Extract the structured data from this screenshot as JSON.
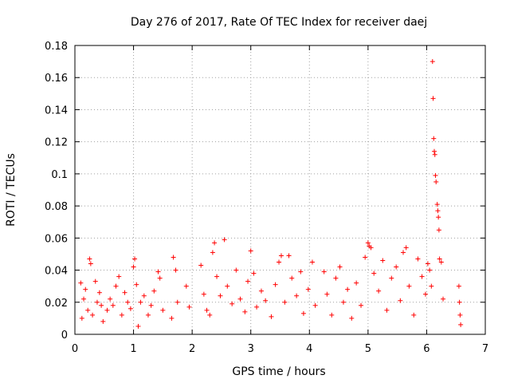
{
  "chart_data": {
    "type": "scatter",
    "title": "Day 276 of 2017, Rate Of TEC Index for receiver daej",
    "xlabel": "GPS time / hours",
    "ylabel": "ROTI / TECUs",
    "xlim": [
      0,
      7
    ],
    "ylim": [
      0,
      0.18
    ],
    "xticks": [
      0,
      1,
      2,
      3,
      4,
      5,
      6,
      7
    ],
    "xtick_labels": [
      "0",
      "1",
      "2",
      "3",
      "4",
      "5",
      "6",
      "7"
    ],
    "yticks": [
      0,
      0.02,
      0.04,
      0.06,
      0.08,
      0.1,
      0.12,
      0.14,
      0.16,
      0.18
    ],
    "ytick_labels": [
      "0",
      "0.02",
      "0.04",
      "0.06",
      "0.08",
      "0.1",
      "0.12",
      "0.14",
      "0.16",
      "0.18"
    ],
    "grid": true,
    "marker": "+",
    "color": "#ff0000",
    "series": [
      {
        "name": "ROTI",
        "points": [
          [
            0.1,
            0.032
          ],
          [
            0.12,
            0.01
          ],
          [
            0.15,
            0.022
          ],
          [
            0.18,
            0.028
          ],
          [
            0.22,
            0.015
          ],
          [
            0.25,
            0.047
          ],
          [
            0.27,
            0.044
          ],
          [
            0.3,
            0.012
          ],
          [
            0.35,
            0.033
          ],
          [
            0.38,
            0.02
          ],
          [
            0.42,
            0.026
          ],
          [
            0.45,
            0.018
          ],
          [
            0.48,
            0.008
          ],
          [
            0.55,
            0.015
          ],
          [
            0.6,
            0.022
          ],
          [
            0.65,
            0.018
          ],
          [
            0.7,
            0.03
          ],
          [
            0.75,
            0.036
          ],
          [
            0.8,
            0.012
          ],
          [
            0.85,
            0.026
          ],
          [
            0.9,
            0.02
          ],
          [
            0.95,
            0.016
          ],
          [
            1.0,
            0.042
          ],
          [
            1.02,
            0.047
          ],
          [
            1.05,
            0.031
          ],
          [
            1.08,
            0.005
          ],
          [
            1.12,
            0.02
          ],
          [
            1.18,
            0.024
          ],
          [
            1.25,
            0.012
          ],
          [
            1.3,
            0.018
          ],
          [
            1.35,
            0.027
          ],
          [
            1.42,
            0.039
          ],
          [
            1.45,
            0.035
          ],
          [
            1.5,
            0.015
          ],
          [
            1.65,
            0.01
          ],
          [
            1.68,
            0.048
          ],
          [
            1.72,
            0.04
          ],
          [
            1.75,
            0.02
          ],
          [
            1.9,
            0.03
          ],
          [
            1.95,
            0.017
          ],
          [
            2.15,
            0.043
          ],
          [
            2.2,
            0.025
          ],
          [
            2.25,
            0.015
          ],
          [
            2.3,
            0.012
          ],
          [
            2.35,
            0.051
          ],
          [
            2.38,
            0.057
          ],
          [
            2.42,
            0.036
          ],
          [
            2.48,
            0.024
          ],
          [
            2.55,
            0.059
          ],
          [
            2.6,
            0.03
          ],
          [
            2.68,
            0.019
          ],
          [
            2.75,
            0.04
          ],
          [
            2.82,
            0.022
          ],
          [
            2.9,
            0.014
          ],
          [
            2.95,
            0.033
          ],
          [
            3.0,
            0.052
          ],
          [
            3.05,
            0.038
          ],
          [
            3.1,
            0.017
          ],
          [
            3.18,
            0.027
          ],
          [
            3.25,
            0.021
          ],
          [
            3.35,
            0.011
          ],
          [
            3.42,
            0.031
          ],
          [
            3.48,
            0.045
          ],
          [
            3.52,
            0.049
          ],
          [
            3.58,
            0.02
          ],
          [
            3.65,
            0.049
          ],
          [
            3.7,
            0.035
          ],
          [
            3.78,
            0.024
          ],
          [
            3.85,
            0.039
          ],
          [
            3.9,
            0.013
          ],
          [
            3.98,
            0.028
          ],
          [
            4.05,
            0.045
          ],
          [
            4.1,
            0.018
          ],
          [
            4.25,
            0.039
          ],
          [
            4.3,
            0.025
          ],
          [
            4.38,
            0.012
          ],
          [
            4.45,
            0.035
          ],
          [
            4.52,
            0.042
          ],
          [
            4.58,
            0.02
          ],
          [
            4.65,
            0.028
          ],
          [
            4.72,
            0.01
          ],
          [
            4.8,
            0.032
          ],
          [
            4.88,
            0.018
          ],
          [
            4.95,
            0.048
          ],
          [
            5.0,
            0.057
          ],
          [
            5.02,
            0.055
          ],
          [
            5.05,
            0.054
          ],
          [
            5.1,
            0.038
          ],
          [
            5.18,
            0.027
          ],
          [
            5.25,
            0.046
          ],
          [
            5.32,
            0.015
          ],
          [
            5.4,
            0.035
          ],
          [
            5.48,
            0.042
          ],
          [
            5.55,
            0.021
          ],
          [
            5.6,
            0.051
          ],
          [
            5.65,
            0.054
          ],
          [
            5.7,
            0.03
          ],
          [
            5.78,
            0.012
          ],
          [
            5.85,
            0.047
          ],
          [
            5.92,
            0.036
          ],
          [
            5.98,
            0.025
          ],
          [
            6.02,
            0.044
          ],
          [
            6.05,
            0.04
          ],
          [
            6.08,
            0.03
          ],
          [
            6.1,
            0.17
          ],
          [
            6.11,
            0.147
          ],
          [
            6.12,
            0.122
          ],
          [
            6.13,
            0.114
          ],
          [
            6.14,
            0.112
          ],
          [
            6.15,
            0.099
          ],
          [
            6.16,
            0.095
          ],
          [
            6.18,
            0.081
          ],
          [
            6.19,
            0.077
          ],
          [
            6.2,
            0.073
          ],
          [
            6.21,
            0.065
          ],
          [
            6.22,
            0.047
          ],
          [
            6.25,
            0.045
          ],
          [
            6.28,
            0.022
          ],
          [
            6.55,
            0.03
          ],
          [
            6.56,
            0.02
          ],
          [
            6.57,
            0.012
          ],
          [
            6.58,
            0.006
          ]
        ]
      }
    ]
  }
}
